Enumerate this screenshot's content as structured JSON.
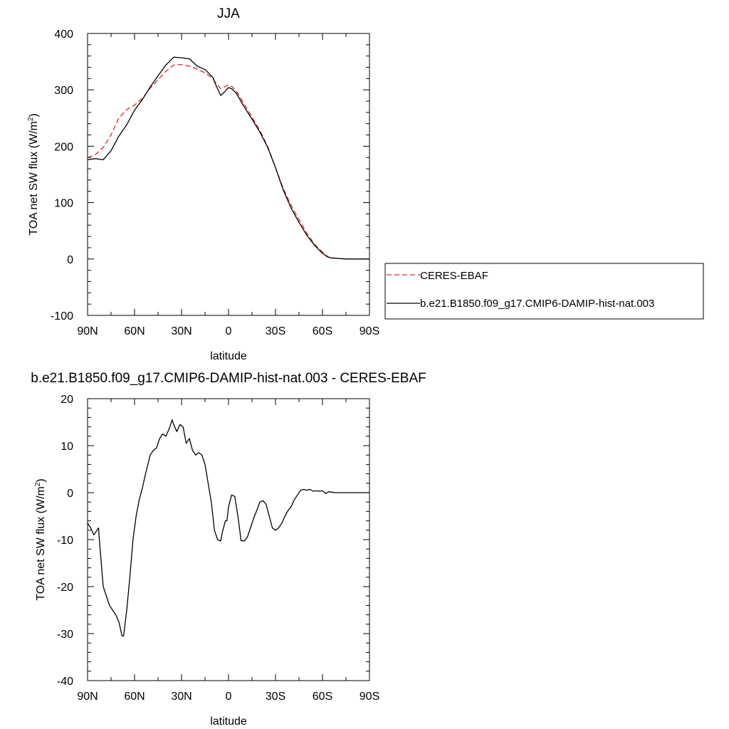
{
  "chart_data": [
    {
      "type": "line",
      "title": "JJA",
      "xlabel": "latitude",
      "ylabel": "TOA net SW flux (W/m²)",
      "ylabel_main": "TOA net SW flux (W/m",
      "ylabel_sup": "2",
      "ylabel_tail": ")",
      "xlim": [
        90,
        -90
      ],
      "ylim": [
        -100,
        400
      ],
      "xticks": [
        90,
        60,
        30,
        0,
        -30,
        -60,
        -90
      ],
      "xtick_labels": [
        "90N",
        "60N",
        "30N",
        "0",
        "30S",
        "60S",
        "90S"
      ],
      "yticks": [
        -100,
        0,
        100,
        200,
        300,
        400
      ],
      "ytick_labels": [
        "-100",
        "0",
        "100",
        "200",
        "300",
        "400"
      ],
      "legend_position": "right",
      "series": [
        {
          "name": "CERES-EBAF",
          "color": "#e0261f",
          "dash": "dashed",
          "x": [
            90,
            85,
            80,
            75,
            70,
            65,
            60,
            55,
            50,
            45,
            40,
            35,
            30,
            25,
            20,
            15,
            10,
            8,
            5,
            2,
            0,
            -2,
            -5,
            -10,
            -15,
            -20,
            -25,
            -30,
            -35,
            -40,
            -45,
            -50,
            -55,
            -60,
            -63,
            -65,
            -70,
            -75,
            -80,
            -85,
            -90
          ],
          "y": [
            180,
            185,
            198,
            220,
            250,
            265,
            273,
            285,
            303,
            318,
            333,
            344,
            345,
            342,
            337,
            330,
            320,
            312,
            302,
            306,
            309,
            306,
            298,
            275,
            252,
            228,
            200,
            162,
            125,
            95,
            70,
            46,
            26,
            12,
            5,
            2,
            1,
            0,
            0,
            0,
            0
          ]
        },
        {
          "name": "b.e21.B1850.f09_g17.CMIP6-DAMIP-hist-nat.003",
          "color": "#000000",
          "dash": "solid",
          "x": [
            90,
            85,
            80,
            75,
            70,
            65,
            60,
            55,
            50,
            45,
            40,
            35,
            30,
            25,
            20,
            15,
            10,
            8,
            5,
            2,
            0,
            -2,
            -5,
            -10,
            -15,
            -20,
            -25,
            -30,
            -35,
            -40,
            -45,
            -50,
            -55,
            -60,
            -63,
            -65,
            -70,
            -75,
            -80,
            -85,
            -90
          ],
          "y": [
            176,
            178,
            176,
            192,
            218,
            238,
            264,
            283,
            305,
            325,
            344,
            358,
            357,
            355,
            342,
            336,
            322,
            308,
            290,
            298,
            304,
            302,
            294,
            270,
            248,
            225,
            198,
            162,
            122,
            90,
            65,
            42,
            24,
            10,
            4,
            2,
            1,
            0,
            0,
            0,
            0
          ]
        }
      ]
    },
    {
      "type": "line",
      "title": "b.e21.B1850.f09_g17.CMIP6-DAMIP-hist-nat.003 - CERES-EBAF",
      "xlabel": "latitude",
      "ylabel": "TOA net SW flux (W/m²)",
      "ylabel_main": "TOA net SW flux (W/m",
      "ylabel_sup": "2",
      "ylabel_tail": ")",
      "xlim": [
        90,
        -90
      ],
      "ylim": [
        -40,
        20
      ],
      "xticks": [
        90,
        60,
        30,
        0,
        -30,
        -60,
        -90
      ],
      "xtick_labels": [
        "90N",
        "60N",
        "30N",
        "0",
        "30S",
        "60S",
        "90S"
      ],
      "yticks": [
        -40,
        -30,
        -20,
        -10,
        0,
        10,
        20
      ],
      "ytick_labels": [
        "-40",
        "-30",
        "-20",
        "-10",
        "0",
        "10",
        "20"
      ],
      "series": [
        {
          "color": "#000000",
          "dash": "solid",
          "x": [
            90,
            88,
            86,
            84,
            83,
            82,
            80,
            78,
            76,
            74,
            72,
            70,
            69,
            68,
            67,
            65,
            63,
            61,
            59,
            57,
            55,
            53,
            50,
            48,
            46,
            44,
            42,
            40,
            38,
            36,
            35,
            33,
            31,
            29,
            27,
            25,
            23,
            21,
            19,
            17,
            15,
            13,
            11,
            9,
            7,
            5,
            4,
            2,
            1,
            0,
            -2,
            -4,
            -6,
            -8,
            -10,
            -12,
            -14,
            -16,
            -18,
            -20,
            -22,
            -24,
            -26,
            -28,
            -30,
            -32,
            -34,
            -36,
            -38,
            -40,
            -42,
            -44,
            -46,
            -48,
            -50,
            -52,
            -54,
            -56,
            -58,
            -60,
            -62,
            -64,
            -66,
            -68,
            -70,
            -72,
            -74,
            -76,
            -78,
            -80,
            -82,
            -84,
            -86,
            -88,
            -90
          ],
          "y": [
            -6.5,
            -7.5,
            -9,
            -8,
            -7.5,
            -12,
            -20,
            -22,
            -24,
            -25,
            -26,
            -27.5,
            -29,
            -30.5,
            -30.5,
            -25,
            -18,
            -10,
            -5,
            -1.5,
            1,
            4,
            8,
            9,
            9.5,
            11.5,
            12.5,
            12,
            13.5,
            15.5,
            14.5,
            13,
            14.5,
            14,
            10.5,
            11.5,
            9,
            8,
            8.5,
            8,
            6,
            2,
            -2,
            -8,
            -10,
            -10.3,
            -8.5,
            -6,
            -6,
            -3,
            -0.5,
            -0.8,
            -5,
            -10.2,
            -10.3,
            -9.5,
            -7.5,
            -5.5,
            -3.8,
            -2,
            -1.7,
            -2.5,
            -5,
            -7.5,
            -8,
            -7.5,
            -6.5,
            -5,
            -3.8,
            -3,
            -1.5,
            -0.5,
            0.5,
            0.7,
            0.5,
            0.7,
            0.3,
            0.4,
            0.3,
            0.4,
            -0.2,
            0.2,
            0.1,
            0,
            0,
            0,
            0,
            0,
            0,
            0,
            0,
            0,
            0,
            0,
            0
          ]
        }
      ]
    }
  ]
}
